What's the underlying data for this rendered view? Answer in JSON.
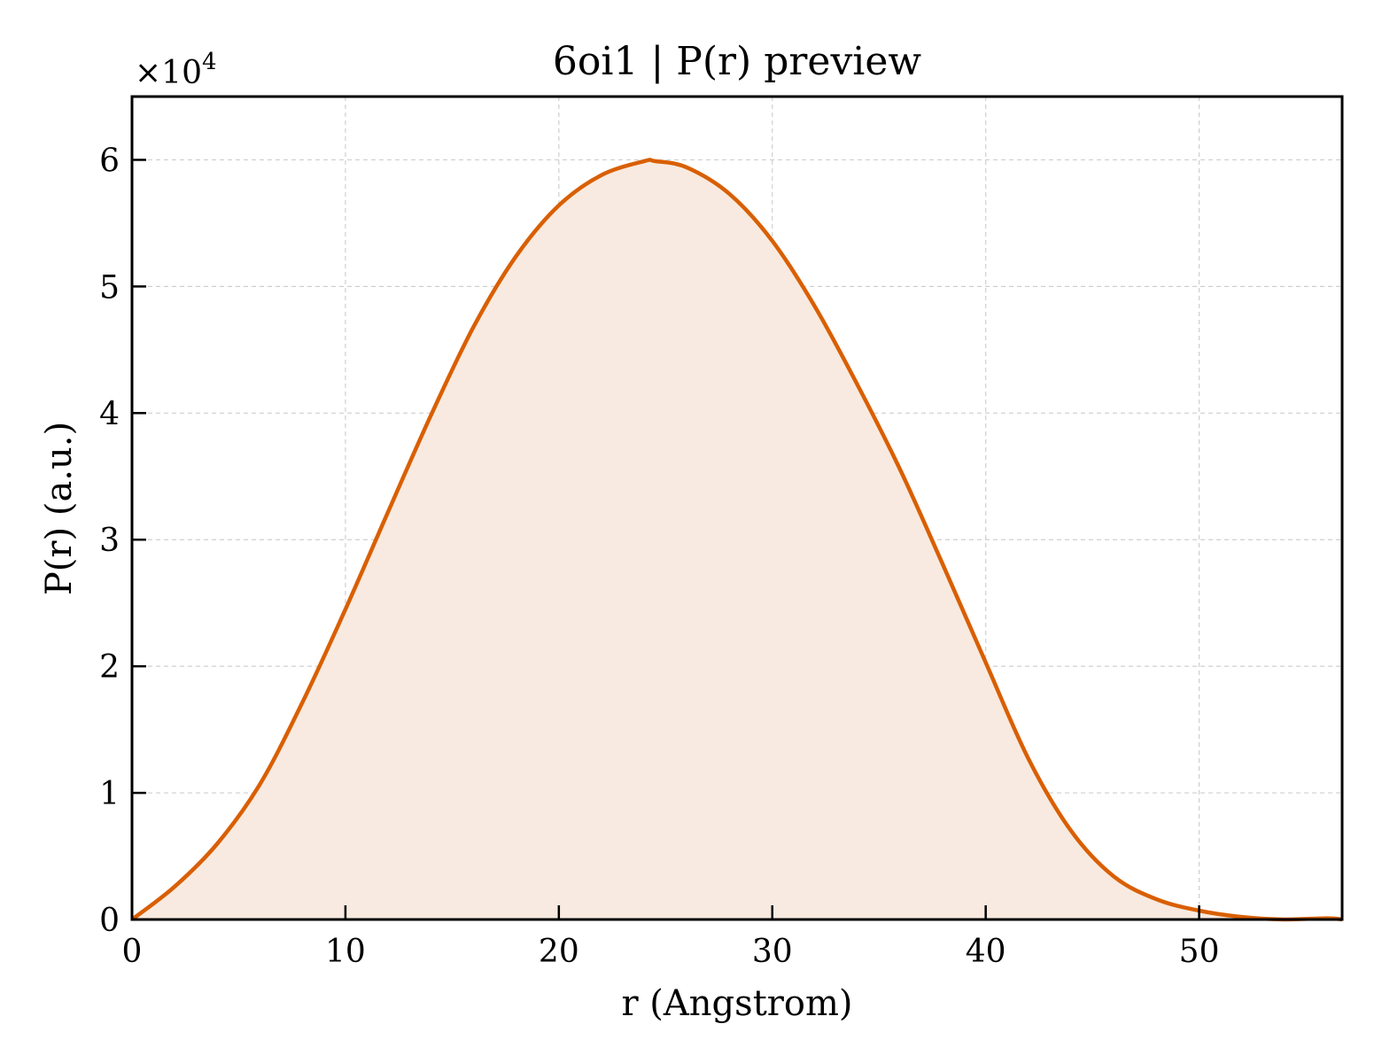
{
  "chart_data": {
    "type": "area",
    "title": "6oi1 | P(r) preview",
    "xlabel": "r (Angstrom)",
    "ylabel": "P(r) (a.u.)",
    "y_multiplier": "×10",
    "y_multiplier_exponent": "4",
    "xlim": [
      0,
      56.7
    ],
    "ylim": [
      0,
      6.5
    ],
    "x_ticks": [
      0,
      10,
      20,
      30,
      40,
      50
    ],
    "y_ticks": [
      0,
      1,
      2,
      3,
      4,
      5,
      6
    ],
    "grid": true,
    "line_color": "#d95f02",
    "fill_color": "#f8eae0",
    "series": [
      {
        "x": [
          0,
          2,
          4,
          6,
          8,
          10,
          12,
          14,
          16,
          18,
          20,
          22,
          24,
          24.5,
          26,
          28,
          30,
          32,
          34,
          36,
          38,
          40,
          42,
          44,
          46,
          48,
          50,
          52,
          54,
          56,
          56.7
        ],
        "y": [
          0,
          0.26,
          0.6,
          1.07,
          1.72,
          2.45,
          3.22,
          3.98,
          4.68,
          5.24,
          5.64,
          5.88,
          5.99,
          5.99,
          5.94,
          5.73,
          5.36,
          4.84,
          4.22,
          3.55,
          2.8,
          2.03,
          1.27,
          0.7,
          0.34,
          0.16,
          0.07,
          0.02,
          0.0,
          0.01,
          0.0
        ]
      }
    ]
  }
}
